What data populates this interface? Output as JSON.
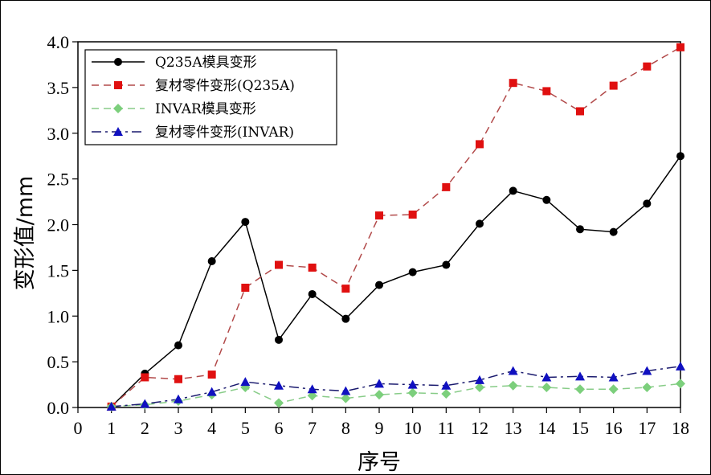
{
  "chart_data": {
    "type": "line",
    "xlabel": "序号",
    "ylabel": "变形值/mm",
    "xlim": [
      0,
      18
    ],
    "ylim": [
      0,
      4.0
    ],
    "x_ticks": [
      "0",
      "1",
      "2",
      "3",
      "4",
      "5",
      "6",
      "7",
      "8",
      "9",
      "10",
      "11",
      "12",
      "13",
      "14",
      "15",
      "16",
      "17",
      "18"
    ],
    "y_ticks": [
      "0.0",
      "0.5",
      "1.0",
      "1.5",
      "2.0",
      "2.5",
      "3.0",
      "3.5",
      "4.0"
    ],
    "grid": false,
    "legend_position": "top-left",
    "x": [
      1,
      2,
      3,
      4,
      5,
      6,
      7,
      8,
      9,
      10,
      11,
      12,
      13,
      14,
      15,
      16,
      17,
      18
    ],
    "series": [
      {
        "name": "Q235A模具变形",
        "color": "#000000",
        "marker": "circle",
        "line": "solid",
        "values": [
          0.01,
          0.37,
          0.68,
          1.6,
          2.03,
          0.74,
          1.24,
          0.97,
          1.34,
          1.48,
          1.56,
          2.01,
          2.37,
          2.27,
          1.95,
          1.92,
          2.23,
          2.75
        ]
      },
      {
        "name": "复材零件变形(Q235A)",
        "color": "#b24a4a",
        "marker_color": "#e01010",
        "marker": "square",
        "line": "dashed",
        "values": [
          0.01,
          0.33,
          0.31,
          0.36,
          1.31,
          1.56,
          1.53,
          1.3,
          2.1,
          2.11,
          2.41,
          2.88,
          3.55,
          3.46,
          3.24,
          3.52,
          3.73,
          3.94
        ]
      },
      {
        "name": "INVAR模具变形",
        "color": "#88cc88",
        "marker_color": "#7ccf7c",
        "marker": "diamond",
        "line": "dashed",
        "values": [
          0.01,
          0.03,
          0.07,
          0.14,
          0.22,
          0.05,
          0.13,
          0.1,
          0.14,
          0.16,
          0.15,
          0.22,
          0.24,
          0.22,
          0.2,
          0.2,
          0.22,
          0.26
        ]
      },
      {
        "name": "复材零件变形(INVAR)",
        "color": "#1a1a6e",
        "marker_color": "#1010c0",
        "marker": "triangle",
        "line": "dashdot",
        "values": [
          0.01,
          0.04,
          0.09,
          0.17,
          0.28,
          0.24,
          0.2,
          0.18,
          0.26,
          0.25,
          0.24,
          0.3,
          0.4,
          0.33,
          0.34,
          0.33,
          0.4,
          0.45
        ]
      }
    ]
  }
}
